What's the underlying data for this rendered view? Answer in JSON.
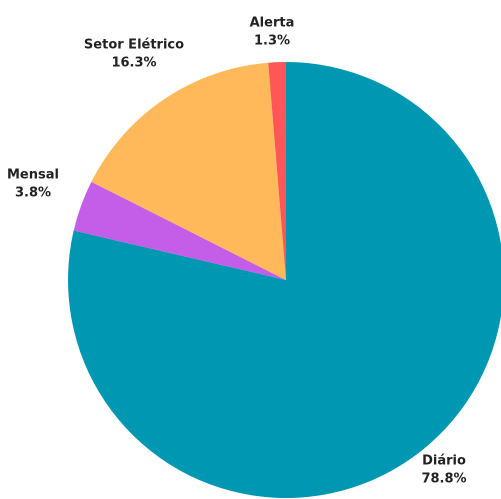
{
  "chart_data": {
    "type": "pie",
    "categories": [
      "Diário",
      "Mensal",
      "Setor Elétrico",
      "Alerta"
    ],
    "values": [
      78.8,
      3.8,
      16.3,
      1.3
    ],
    "value_labels": [
      "78.8%",
      "3.8%",
      "16.3%",
      "1.3%"
    ],
    "colors": [
      "#0097b2",
      "#c45ee8",
      "#ffb95a",
      "#ff5757"
    ]
  }
}
